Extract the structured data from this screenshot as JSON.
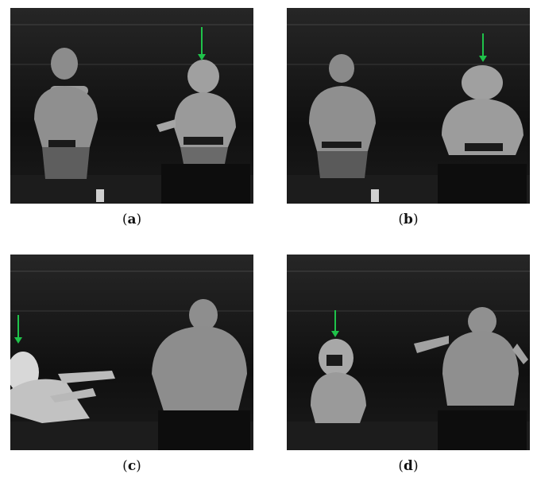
{
  "figure": {
    "panels": [
      {
        "id": "a",
        "caption_letter": "a"
      },
      {
        "id": "b",
        "caption_letter": "b"
      },
      {
        "id": "c",
        "caption_letter": "c"
      },
      {
        "id": "d",
        "caption_letter": "d"
      }
    ],
    "arrow_color": "#1fc24a",
    "scene": "thermal-camera-top-view"
  }
}
